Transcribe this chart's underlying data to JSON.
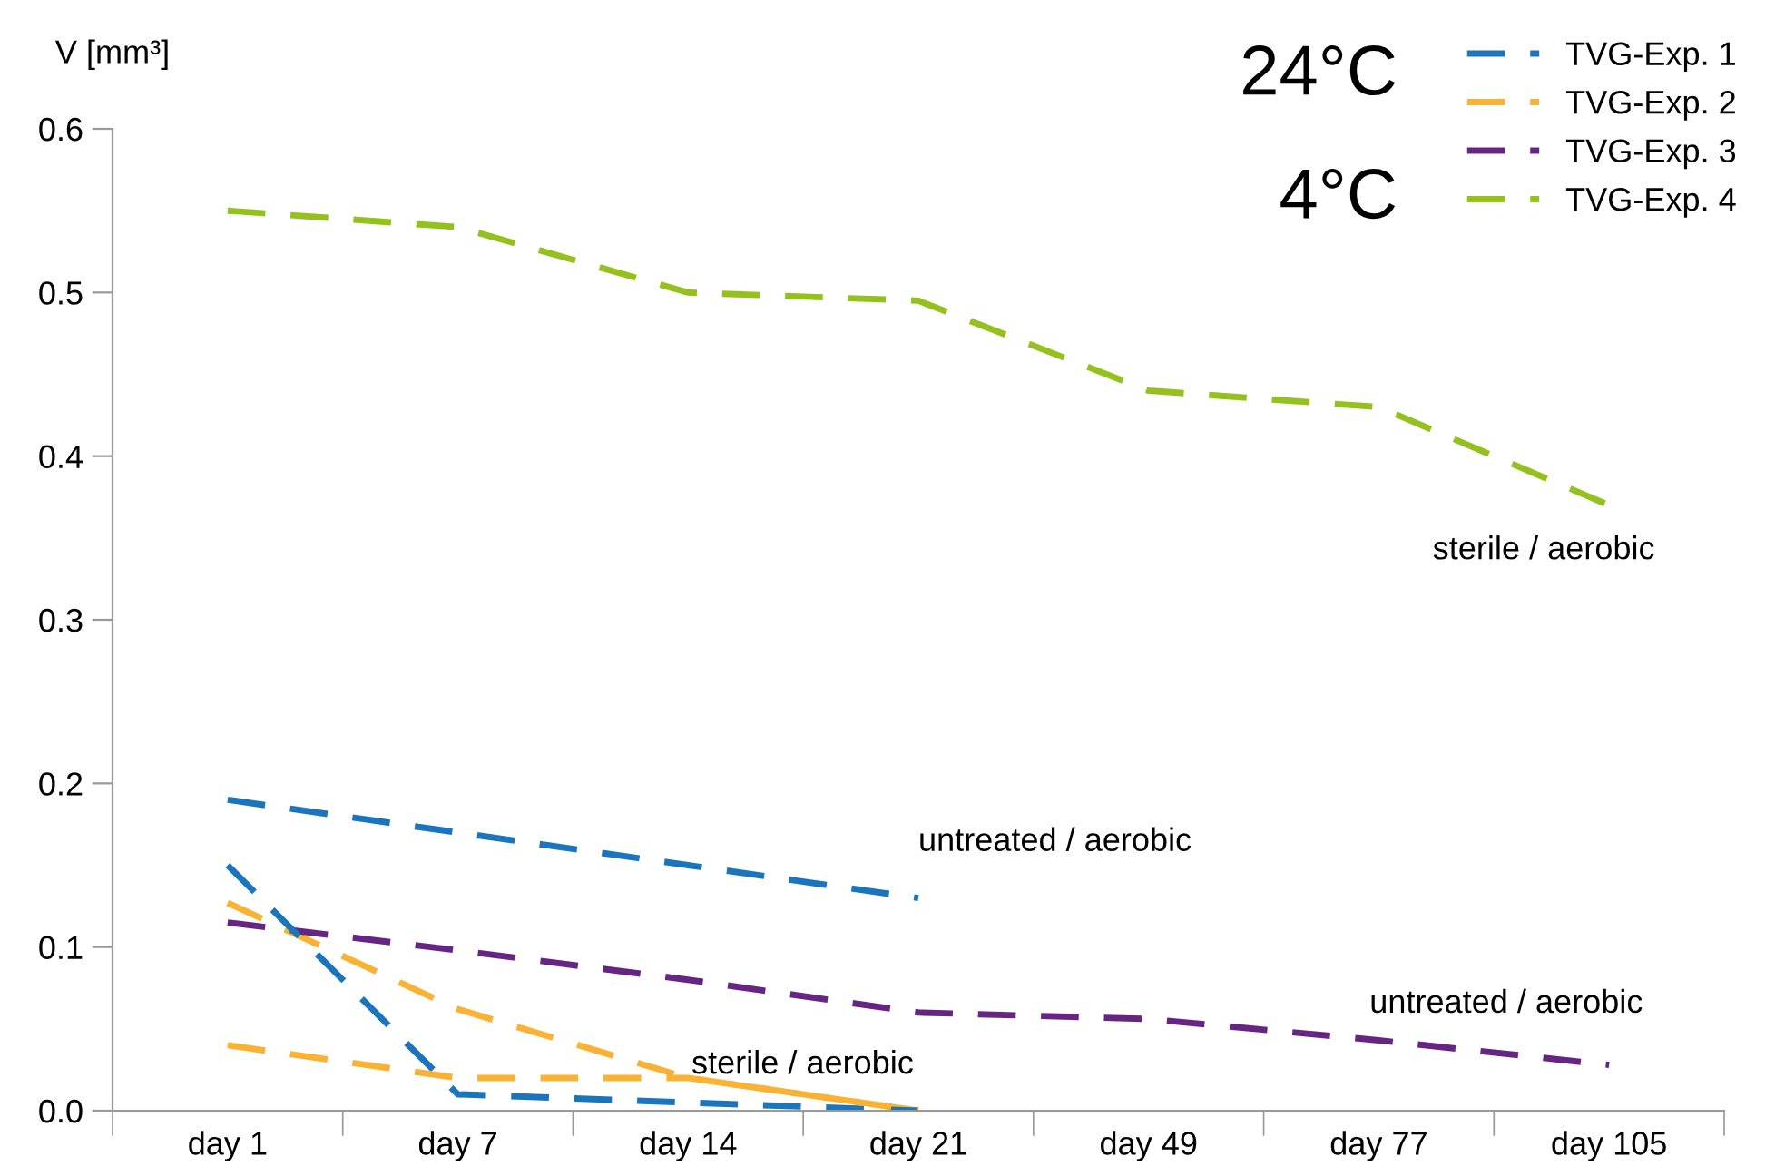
{
  "chart_data": {
    "type": "line",
    "ylabel": "V [mm³]",
    "categories": [
      "day 1",
      "day 7",
      "day 14",
      "day 21",
      "day 49",
      "day 77",
      "day 105"
    ],
    "series": [
      {
        "name": "TVG-Exp. 1",
        "color": "#1a75bc",
        "values": [
          0.19,
          0.17,
          0.15,
          0.13,
          null,
          null,
          null
        ]
      },
      {
        "name": "TVG-Exp. 2",
        "color": "#f9b233",
        "values": [
          0.127,
          0.062,
          0.02,
          0.0,
          null,
          null,
          null
        ]
      },
      {
        "name": "TVG-Exp. 3",
        "color": "#662483",
        "values": [
          0.115,
          0.098,
          0.08,
          0.06,
          0.056,
          0.043,
          0.028
        ]
      },
      {
        "name": "TVG-Exp. 4",
        "color": "#95c11f",
        "values": [
          0.55,
          0.54,
          0.5,
          0.495,
          0.44,
          0.43,
          0.37
        ]
      },
      {
        "color": "#1a75bc",
        "values": [
          0.15,
          0.01,
          0.005,
          0.0,
          null,
          null,
          null
        ]
      },
      {
        "color": "#f9b233",
        "values": [
          0.04,
          0.02,
          0.02,
          0.0,
          null,
          null,
          null
        ]
      }
    ],
    "ylim": [
      0,
      0.6
    ],
    "yticks": [
      {
        "value": 0,
        "label": "0.0"
      },
      0.1,
      0.2,
      0.3,
      0.4,
      0.5,
      0.6
    ],
    "grid": false,
    "legend": "top right",
    "line_style": "dashed",
    "marker": "none",
    "annotations": [
      "24°C",
      "4°C",
      {
        "text": "untreated / aerobic",
        "x": "day 21",
        "y": 0.13
      },
      {
        "text": "untreated / aerobic",
        "x": "day 105",
        "y": 0.028
      },
      {
        "text": "sterile / aerobic",
        "x": "day 105",
        "y": 0.37
      },
      {
        "text": "sterile / aerobic",
        "x": "day 21",
        "y": 0.0
      }
    ]
  }
}
